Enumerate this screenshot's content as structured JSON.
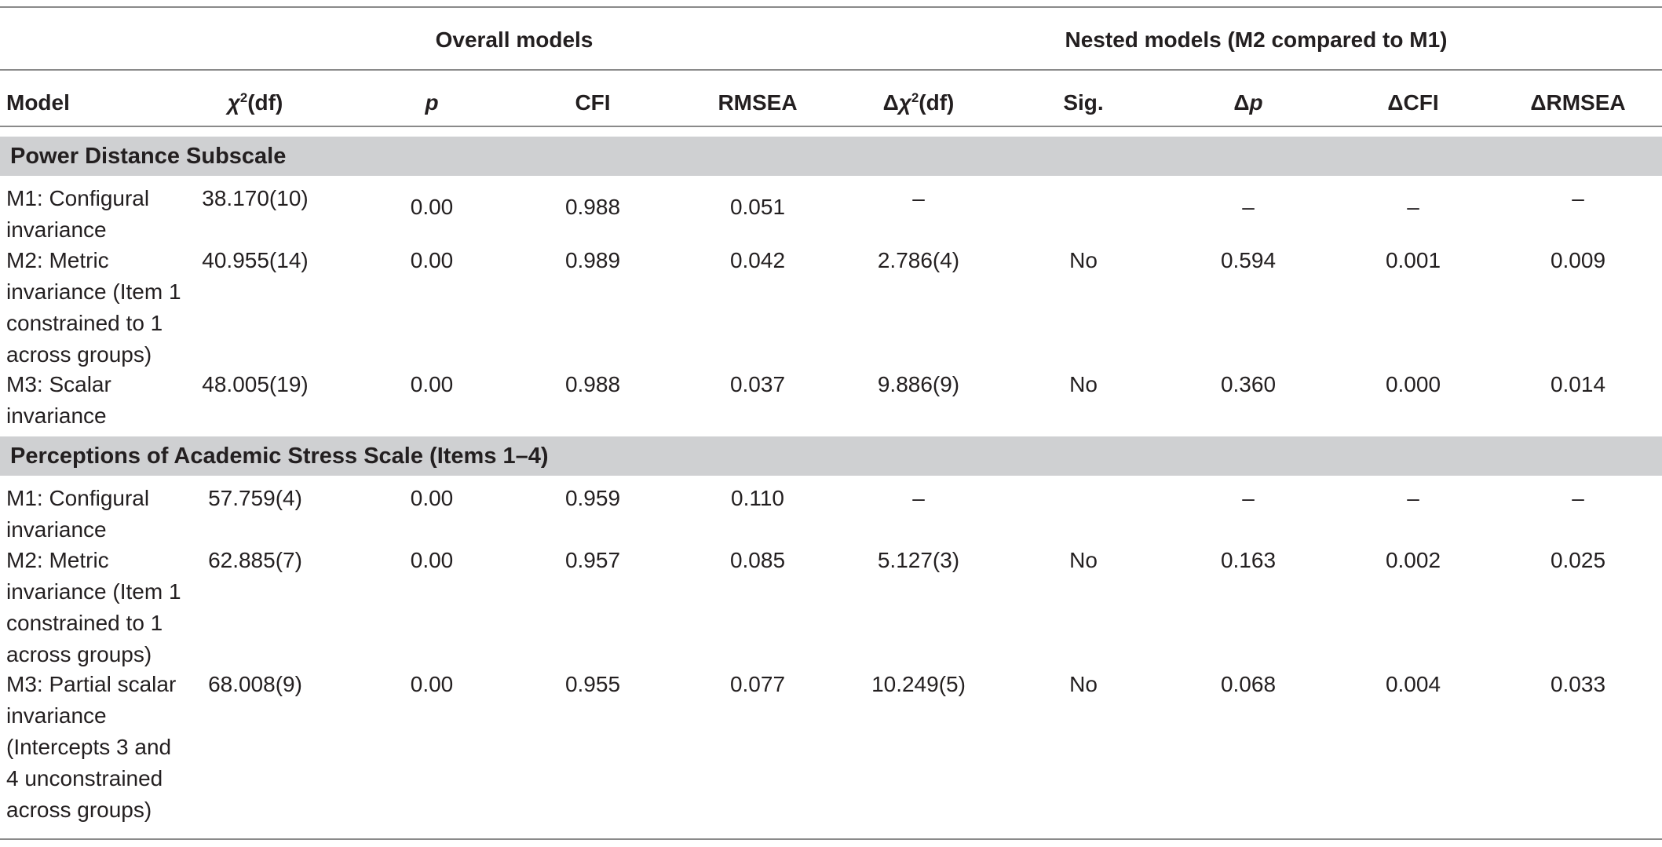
{
  "header": {
    "group_overall": "Overall models",
    "group_nested": "Nested models (M2 compared to M1)",
    "columns": {
      "model": "Model",
      "chi_sym": "χ",
      "chi_sup": "2",
      "chi_df": "(df)",
      "p": "p",
      "cfi": "CFI",
      "rmsea": "RMSEA",
      "dchi_delta": "Δ",
      "dchi_sym": "χ",
      "dchi_sup": "2",
      "dchi_df": "(df)",
      "sig": "Sig.",
      "dp_delta": "Δ",
      "dp_sym": "p",
      "dcfi": "ΔCFI",
      "drmsea": "ΔRMSEA"
    }
  },
  "sections": [
    {
      "title": "Power Distance Subscale",
      "rows": [
        {
          "model": "M1: Configural invariance",
          "chi": "38.170(10)",
          "p": "0.00",
          "cfi": "0.988",
          "rmsea": "0.051",
          "dchi": "–",
          "sig": "",
          "dp": "–",
          "dcfi": "–",
          "drmsea": "–"
        },
        {
          "model": "M2: Metric invariance (Item 1 constrained to 1 across groups)",
          "chi": "40.955(14)",
          "p": "0.00",
          "cfi": "0.989",
          "rmsea": "0.042",
          "dchi": "2.786(4)",
          "sig": "No",
          "dp": "0.594",
          "dcfi": "0.001",
          "drmsea": "0.009"
        },
        {
          "model": "M3: Scalar invariance",
          "chi": "48.005(19)",
          "p": "0.00",
          "cfi": "0.988",
          "rmsea": "0.037",
          "dchi": "9.886(9)",
          "sig": "No",
          "dp": "0.360",
          "dcfi": "0.000",
          "drmsea": "0.014"
        }
      ]
    },
    {
      "title": "Perceptions of Academic Stress Scale (Items 1–4)",
      "rows": [
        {
          "model": "M1: Configural invariance",
          "chi": "57.759(4)",
          "p": "0.00",
          "cfi": "0.959",
          "rmsea": "0.110",
          "dchi": "–",
          "sig": "",
          "dp": "–",
          "dcfi": "–",
          "drmsea": "–"
        },
        {
          "model": "M2: Metric invariance (Item 1 constrained to 1 across groups)",
          "chi": "62.885(7)",
          "p": "0.00",
          "cfi": "0.957",
          "rmsea": "0.085",
          "dchi": "5.127(3)",
          "sig": "No",
          "dp": "0.163",
          "dcfi": "0.002",
          "drmsea": "0.025"
        },
        {
          "model": "M3: Partial scalar invariance (Intercepts 3 and 4 unconstrained across groups)",
          "chi": "68.008(9)",
          "p": "0.00",
          "cfi": "0.955",
          "rmsea": "0.077",
          "dchi": "10.249(5)",
          "sig": "No",
          "dp": "0.068",
          "dcfi": "0.004",
          "drmsea": "0.033"
        }
      ]
    }
  ]
}
